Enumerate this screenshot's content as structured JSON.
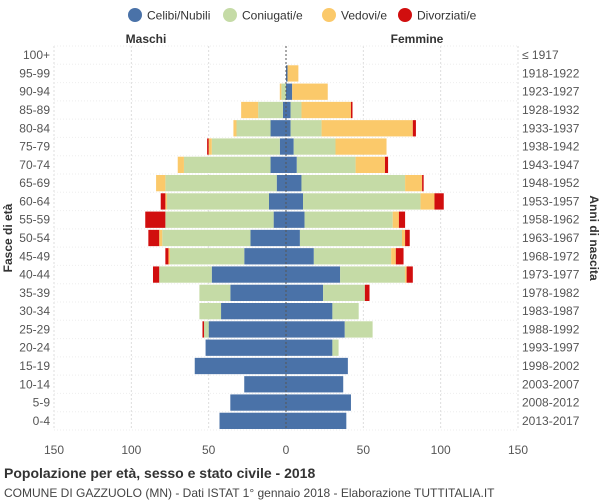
{
  "chart_data": {
    "type": "bar",
    "orientation": "horizontal-pyramid",
    "title": "Popolazione per età, sesso e stato civile - 2018",
    "subtitle": "COMUNE DI GAZZUOLO (MN) - Dati ISTAT 1° gennaio 2018 - Elaborazione TUTTITALIA.IT",
    "ylabel_left": "Fasce di età",
    "ylabel_right": "Anni di nascita",
    "left_header": "Maschi",
    "right_header": "Femmine",
    "xlim": [
      -150,
      150
    ],
    "xticks": [
      -150,
      -100,
      -50,
      0,
      50,
      100,
      150
    ],
    "xtick_labels": [
      "150",
      "100",
      "50",
      "0",
      "50",
      "100",
      "150"
    ],
    "legend": [
      {
        "key": "celibi",
        "label": "Celibi/Nubili",
        "color": "#4a72a8"
      },
      {
        "key": "coniugati",
        "label": "Coniugati/e",
        "color": "#c5dba6"
      },
      {
        "key": "vedovi",
        "label": "Vedovi/e",
        "color": "#fbc96a"
      },
      {
        "key": "divorziati",
        "label": "Divorziati/e",
        "color": "#d10e0e"
      }
    ],
    "age_groups": [
      "100+",
      "95-99",
      "90-94",
      "85-89",
      "80-84",
      "75-79",
      "70-74",
      "65-69",
      "60-64",
      "55-59",
      "50-54",
      "45-49",
      "40-44",
      "35-39",
      "30-34",
      "25-29",
      "20-24",
      "15-19",
      "10-14",
      "5-9",
      "0-4"
    ],
    "birth_years": [
      "≤ 1917",
      "1918-1922",
      "1923-1927",
      "1928-1932",
      "1933-1937",
      "1938-1942",
      "1943-1947",
      "1948-1952",
      "1953-1957",
      "1958-1962",
      "1963-1967",
      "1968-1972",
      "1973-1977",
      "1978-1982",
      "1983-1987",
      "1988-1992",
      "1993-1997",
      "1998-2002",
      "2003-2007",
      "2008-2012",
      "2013-2017"
    ],
    "males": {
      "celibi": [
        0,
        0,
        0,
        2,
        10,
        4,
        10,
        6,
        11,
        8,
        23,
        27,
        48,
        36,
        42,
        50,
        52,
        59,
        27,
        36,
        43
      ],
      "coniugati": [
        0,
        0,
        3,
        16,
        22,
        44,
        56,
        72,
        66,
        70,
        57,
        48,
        34,
        20,
        14,
        3,
        0,
        0,
        0,
        0,
        0
      ],
      "vedovi": [
        0,
        0,
        1,
        11,
        2,
        2,
        4,
        6,
        1,
        0,
        2,
        1,
        0,
        0,
        0,
        0,
        0,
        0,
        0,
        0,
        0
      ],
      "divorziati": [
        0,
        0,
        0,
        0,
        0,
        1,
        0,
        0,
        3,
        13,
        7,
        2,
        4,
        0,
        0,
        1,
        0,
        0,
        0,
        0,
        0
      ]
    },
    "females": {
      "nubili": [
        0,
        1,
        4,
        3,
        3,
        5,
        7,
        10,
        11,
        12,
        9,
        18,
        35,
        24,
        30,
        38,
        30,
        40,
        37,
        42,
        39
      ],
      "coniugate": [
        0,
        0,
        0,
        7,
        20,
        27,
        38,
        67,
        76,
        57,
        66,
        50,
        42,
        27,
        17,
        18,
        4,
        0,
        0,
        0,
        0
      ],
      "vedove": [
        0,
        7,
        23,
        32,
        59,
        33,
        19,
        11,
        9,
        4,
        2,
        3,
        1,
        0,
        0,
        0,
        0,
        0,
        0,
        0,
        0
      ],
      "divorziate": [
        0,
        0,
        0,
        1,
        2,
        0,
        2,
        1,
        6,
        4,
        3,
        5,
        4,
        3,
        0,
        0,
        0,
        0,
        0,
        0,
        0
      ]
    }
  }
}
